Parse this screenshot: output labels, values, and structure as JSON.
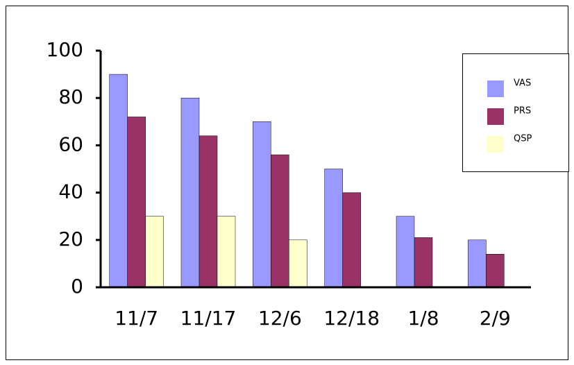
{
  "chart_data": {
    "type": "bar",
    "categories": [
      "11/7",
      "11/17",
      "12/6",
      "12/18",
      "1/8",
      "2/9"
    ],
    "series": [
      {
        "name": "VAS",
        "color": "#9999ff",
        "values": [
          90,
          80,
          70,
          50,
          30,
          20
        ]
      },
      {
        "name": "PRS",
        "color": "#993366",
        "values": [
          72,
          64,
          56,
          40,
          21,
          14
        ]
      },
      {
        "name": "QSP",
        "color": "#ffffcc",
        "values": [
          30,
          30,
          20,
          null,
          null,
          null
        ]
      }
    ],
    "ylim": [
      0,
      100
    ],
    "yticks": [
      0,
      20,
      40,
      60,
      80,
      100
    ],
    "grid": false,
    "legend": "right"
  }
}
